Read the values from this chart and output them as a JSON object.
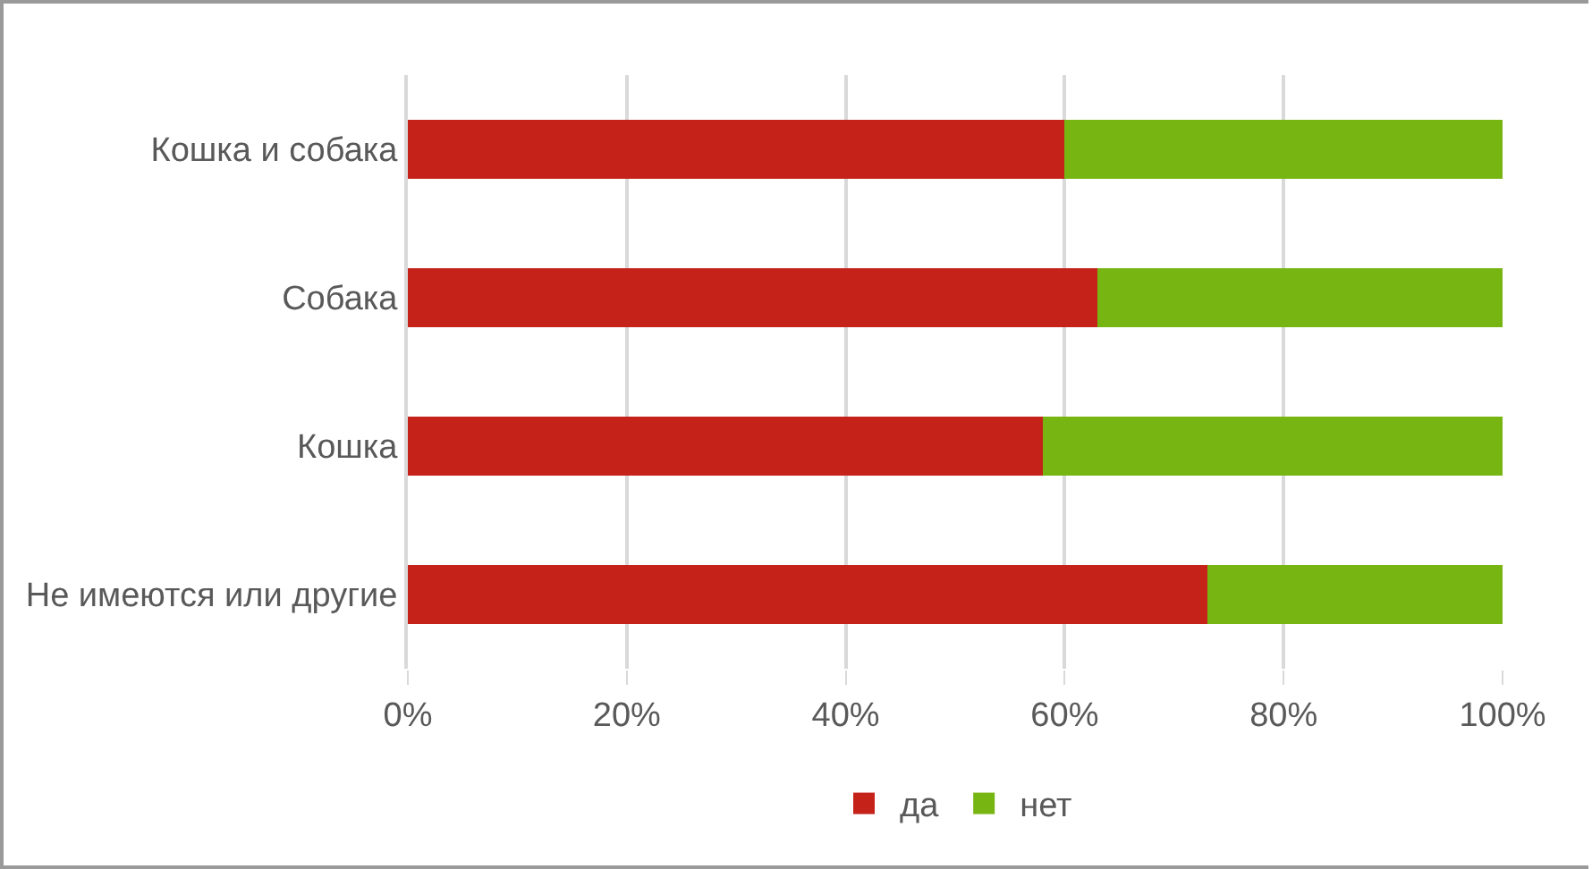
{
  "chart_data": {
    "type": "bar",
    "orientation": "horizontal",
    "stacked": true,
    "categories": [
      "Кошка и собака",
      "Собака",
      "Кошка",
      "Не имеются или другие"
    ],
    "series": [
      {
        "name": "да",
        "color": "#c5221a",
        "values": [
          60,
          63,
          58,
          73
        ]
      },
      {
        "name": "нет",
        "color": "#76b512",
        "values": [
          40,
          37,
          42,
          27
        ]
      }
    ],
    "xlim": [
      0,
      100
    ],
    "xticks": [
      {
        "value": 0,
        "label": "0%"
      },
      {
        "value": 20,
        "label": "20%"
      },
      {
        "value": 40,
        "label": "40%"
      },
      {
        "value": 60,
        "label": "60%"
      },
      {
        "value": 80,
        "label": "80%"
      },
      {
        "value": 100,
        "label": "100%"
      }
    ],
    "grid": "x",
    "legend": "bottom"
  }
}
